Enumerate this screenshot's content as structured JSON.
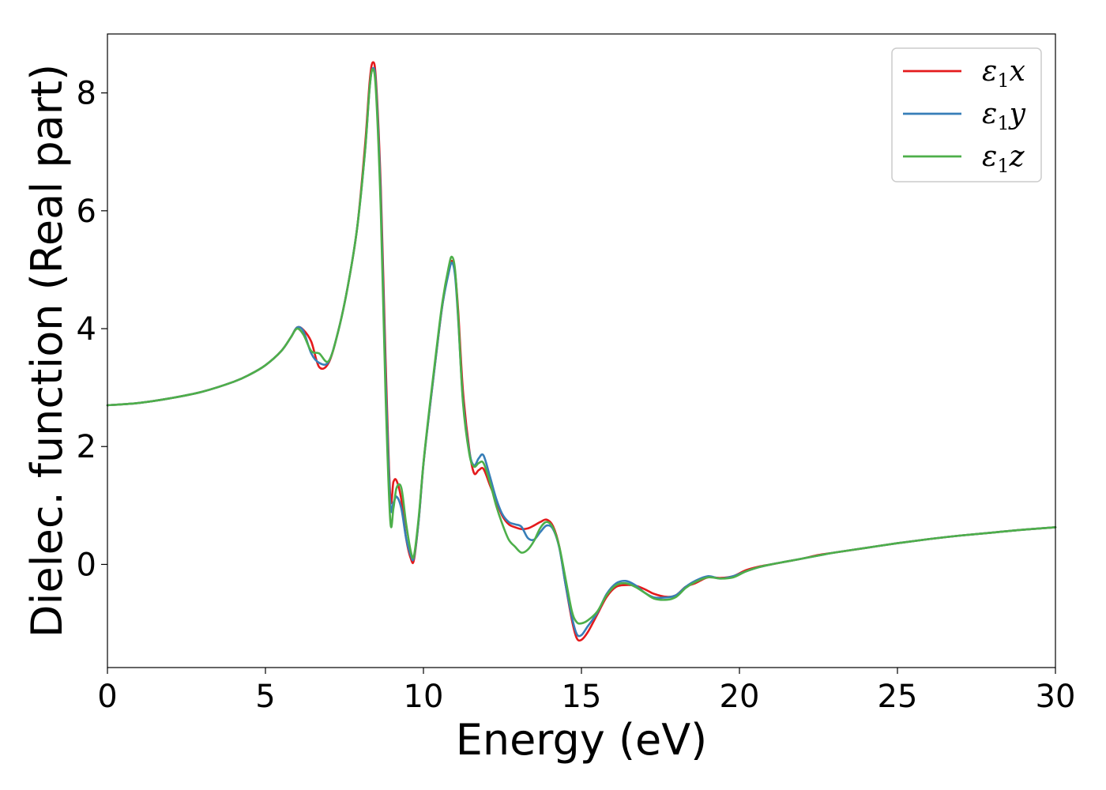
{
  "chart_data": {
    "type": "line",
    "title": "",
    "xlabel": "Energy (eV)",
    "ylabel": "Dielec. function (Real part)",
    "xlim": [
      0,
      30
    ],
    "ylim": [
      -1.75,
      9.0
    ],
    "xticks": [
      0,
      5,
      10,
      15,
      20,
      25,
      30
    ],
    "yticks": [
      0,
      2,
      4,
      6,
      8
    ],
    "grid": false,
    "legend_position": "top-right",
    "series": [
      {
        "name": "ε₁x",
        "legend_base": "ε",
        "legend_sub": "1",
        "legend_var": "x",
        "color": "#e41a1c",
        "x": [
          0,
          1,
          2,
          3,
          4,
          4.5,
          5,
          5.5,
          5.8,
          6.0,
          6.2,
          6.45,
          6.7,
          7.0,
          7.3,
          7.6,
          7.9,
          8.15,
          8.3,
          8.4,
          8.5,
          8.65,
          8.8,
          8.95,
          9.05,
          9.15,
          9.3,
          9.45,
          9.6,
          9.7,
          9.85,
          10.0,
          10.2,
          10.4,
          10.6,
          10.8,
          10.9,
          11.0,
          11.1,
          11.25,
          11.45,
          11.6,
          11.75,
          11.9,
          12.1,
          12.3,
          12.5,
          12.7,
          12.9,
          13.1,
          13.3,
          13.5,
          13.7,
          13.9,
          14.1,
          14.3,
          14.5,
          14.7,
          14.85,
          15.0,
          15.2,
          15.5,
          15.8,
          16.1,
          16.4,
          16.7,
          17.0,
          17.3,
          17.7,
          18.0,
          18.3,
          18.6,
          19.0,
          19.4,
          19.8,
          20.2,
          20.6,
          21.0,
          21.5,
          22.0,
          22.5,
          23.0,
          24.0,
          25.0,
          26.0,
          27.0,
          28.0,
          29.0,
          30.0
        ],
        "values": [
          2.7,
          2.74,
          2.82,
          2.93,
          3.1,
          3.22,
          3.38,
          3.62,
          3.85,
          4.02,
          3.98,
          3.78,
          3.35,
          3.42,
          3.95,
          4.7,
          5.7,
          7.1,
          8.2,
          8.52,
          8.2,
          6.4,
          3.5,
          1.15,
          1.4,
          1.42,
          1.1,
          0.45,
          0.1,
          0.08,
          0.75,
          1.7,
          2.65,
          3.55,
          4.4,
          5.0,
          5.15,
          4.95,
          4.3,
          2.95,
          1.95,
          1.55,
          1.6,
          1.62,
          1.35,
          1.08,
          0.82,
          0.68,
          0.63,
          0.6,
          0.61,
          0.66,
          0.72,
          0.76,
          0.65,
          0.3,
          -0.35,
          -0.95,
          -1.25,
          -1.28,
          -1.15,
          -0.85,
          -0.55,
          -0.38,
          -0.35,
          -0.36,
          -0.42,
          -0.5,
          -0.55,
          -0.52,
          -0.38,
          -0.32,
          -0.22,
          -0.23,
          -0.2,
          -0.1,
          -0.04,
          0.0,
          0.05,
          0.1,
          0.16,
          0.2,
          0.28,
          0.36,
          0.43,
          0.49,
          0.54,
          0.59,
          0.63
        ]
      },
      {
        "name": "ε₁y",
        "legend_base": "ε",
        "legend_sub": "1",
        "legend_var": "y",
        "color": "#377eb8",
        "x": [
          0,
          1,
          2,
          3,
          4,
          4.5,
          5,
          5.5,
          5.8,
          6.0,
          6.2,
          6.45,
          6.7,
          7.0,
          7.3,
          7.6,
          7.9,
          8.15,
          8.3,
          8.4,
          8.5,
          8.65,
          8.8,
          8.95,
          9.05,
          9.15,
          9.3,
          9.45,
          9.6,
          9.7,
          9.85,
          10.0,
          10.2,
          10.4,
          10.6,
          10.8,
          10.9,
          11.0,
          11.1,
          11.25,
          11.45,
          11.6,
          11.75,
          11.9,
          12.1,
          12.3,
          12.5,
          12.7,
          12.9,
          13.1,
          13.3,
          13.5,
          13.7,
          13.9,
          14.1,
          14.3,
          14.5,
          14.7,
          14.85,
          15.0,
          15.2,
          15.5,
          15.8,
          16.1,
          16.4,
          16.7,
          17.0,
          17.3,
          17.7,
          18.0,
          18.3,
          18.6,
          19.0,
          19.4,
          19.8,
          20.2,
          20.6,
          21.0,
          21.5,
          22.0,
          22.5,
          23.0,
          24.0,
          25.0,
          26.0,
          27.0,
          28.0,
          29.0,
          30.0
        ],
        "values": [
          2.7,
          2.74,
          2.82,
          2.93,
          3.1,
          3.22,
          3.38,
          3.62,
          3.85,
          4.02,
          3.96,
          3.58,
          3.42,
          3.44,
          3.95,
          4.7,
          5.7,
          7.0,
          8.1,
          8.42,
          8.1,
          6.2,
          3.2,
          1.05,
          1.05,
          1.15,
          0.95,
          0.45,
          0.15,
          0.12,
          0.75,
          1.7,
          2.65,
          3.55,
          4.4,
          4.95,
          5.12,
          4.9,
          4.15,
          2.8,
          1.92,
          1.68,
          1.8,
          1.85,
          1.5,
          1.12,
          0.85,
          0.72,
          0.68,
          0.64,
          0.45,
          0.42,
          0.55,
          0.66,
          0.6,
          0.28,
          -0.35,
          -0.9,
          -1.18,
          -1.2,
          -1.05,
          -0.82,
          -0.5,
          -0.32,
          -0.28,
          -0.35,
          -0.48,
          -0.56,
          -0.56,
          -0.52,
          -0.38,
          -0.28,
          -0.2,
          -0.24,
          -0.2,
          -0.12,
          -0.05,
          0.0,
          0.05,
          0.1,
          0.15,
          0.2,
          0.28,
          0.36,
          0.43,
          0.49,
          0.54,
          0.59,
          0.63
        ]
      },
      {
        "name": "ε₁z",
        "legend_base": "ε",
        "legend_sub": "1",
        "legend_var": "z",
        "color": "#4daf4a",
        "x": [
          0,
          1,
          2,
          3,
          4,
          4.5,
          5,
          5.5,
          5.8,
          6.0,
          6.2,
          6.45,
          6.7,
          7.0,
          7.3,
          7.6,
          7.9,
          8.15,
          8.3,
          8.4,
          8.5,
          8.65,
          8.8,
          8.95,
          9.05,
          9.15,
          9.3,
          9.45,
          9.6,
          9.7,
          9.85,
          10.0,
          10.2,
          10.4,
          10.6,
          10.8,
          10.9,
          11.0,
          11.1,
          11.25,
          11.45,
          11.6,
          11.75,
          11.9,
          12.1,
          12.3,
          12.5,
          12.7,
          12.9,
          13.1,
          13.3,
          13.5,
          13.7,
          13.9,
          14.1,
          14.3,
          14.5,
          14.7,
          14.85,
          15.0,
          15.2,
          15.5,
          15.8,
          16.1,
          16.4,
          16.7,
          17.0,
          17.3,
          17.7,
          18.0,
          18.3,
          18.6,
          19.0,
          19.4,
          19.8,
          20.2,
          20.6,
          21.0,
          21.5,
          22.0,
          22.5,
          23.0,
          24.0,
          25.0,
          26.0,
          27.0,
          28.0,
          29.0,
          30.0
        ],
        "values": [
          2.7,
          2.74,
          2.82,
          2.93,
          3.1,
          3.22,
          3.38,
          3.62,
          3.85,
          4.0,
          3.9,
          3.62,
          3.58,
          3.45,
          3.95,
          4.7,
          5.7,
          7.0,
          8.1,
          8.4,
          8.0,
          6.0,
          2.9,
          0.75,
          0.95,
          1.3,
          1.3,
          0.7,
          0.22,
          0.15,
          0.8,
          1.72,
          2.7,
          3.6,
          4.45,
          5.05,
          5.22,
          5.0,
          4.2,
          2.75,
          1.88,
          1.66,
          1.72,
          1.72,
          1.4,
          1.0,
          0.68,
          0.42,
          0.3,
          0.2,
          0.25,
          0.4,
          0.62,
          0.72,
          0.62,
          0.3,
          -0.25,
          -0.8,
          -0.98,
          -1.0,
          -0.95,
          -0.8,
          -0.52,
          -0.35,
          -0.32,
          -0.38,
          -0.48,
          -0.58,
          -0.6,
          -0.55,
          -0.4,
          -0.3,
          -0.22,
          -0.24,
          -0.22,
          -0.12,
          -0.05,
          0.0,
          0.05,
          0.1,
          0.15,
          0.2,
          0.28,
          0.36,
          0.43,
          0.49,
          0.54,
          0.59,
          0.63
        ]
      }
    ]
  }
}
